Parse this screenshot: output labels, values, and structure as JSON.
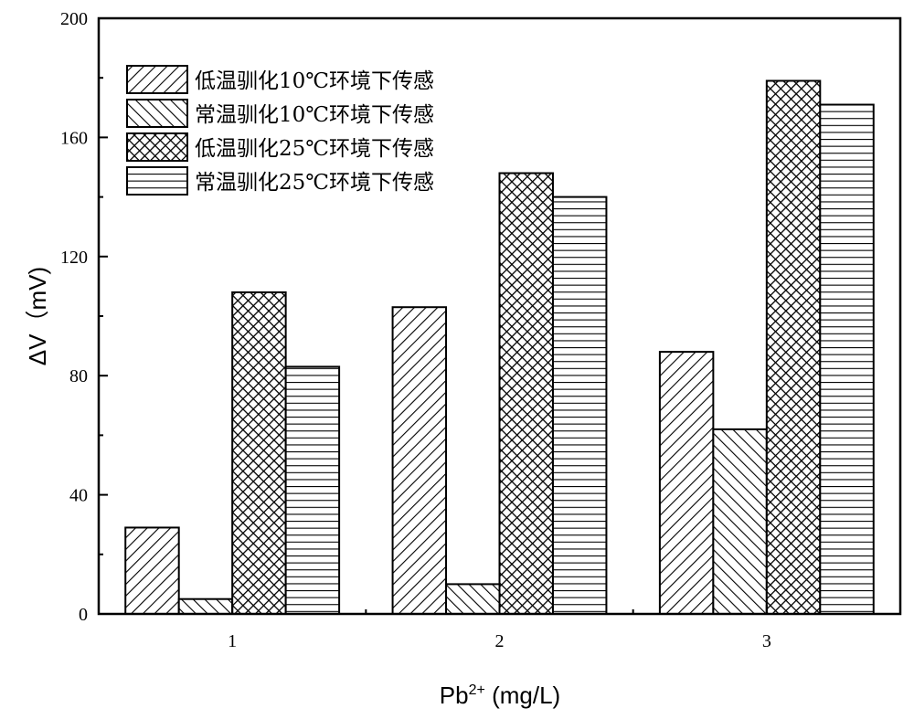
{
  "chart_data": {
    "type": "bar",
    "title": "",
    "xlabel_main": "Pb",
    "xlabel_sup": "2+",
    "xlabel_unit": " (mg/L)",
    "ylabel": "ΔV（mV)",
    "categories": [
      "1",
      "2",
      "3"
    ],
    "ylim": [
      0,
      200
    ],
    "xlim": [
      0.5,
      3.5
    ],
    "yticks": [
      "0",
      "40",
      "80",
      "120",
      "160",
      "200"
    ],
    "ytick_values": [
      0,
      40,
      80,
      120,
      160,
      200
    ],
    "grid": false,
    "legend_position": "top-left",
    "series": [
      {
        "name": "低温驯化10℃环境下传感",
        "pattern": "diag-right",
        "values": [
          29,
          103,
          88
        ]
      },
      {
        "name": "常温驯化10℃环境下传感",
        "pattern": "diag-left",
        "values": [
          5,
          10,
          62
        ]
      },
      {
        "name": "低温驯化25℃环境下传感",
        "pattern": "crosshatch",
        "values": [
          108,
          148,
          179
        ]
      },
      {
        "name": "常温驯化25℃环境下传感",
        "pattern": "horizontal",
        "values": [
          83,
          140,
          171
        ]
      }
    ]
  }
}
